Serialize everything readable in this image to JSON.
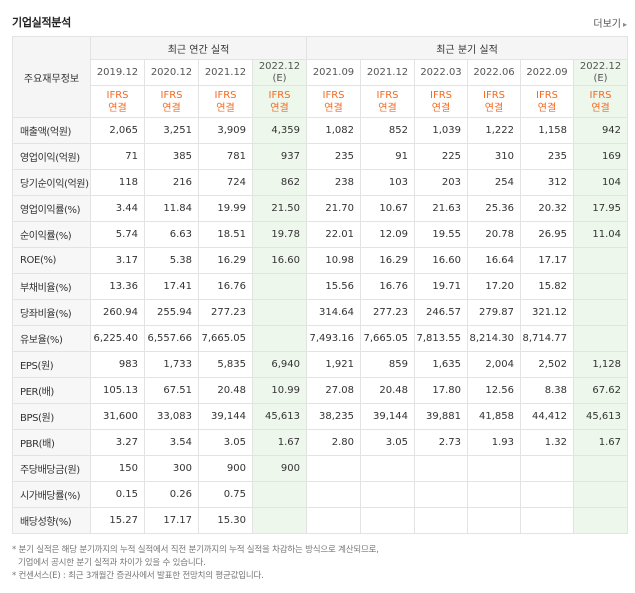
{
  "header": {
    "title": "기업실적분석",
    "more_label": "더보기"
  },
  "table": {
    "row_head": "주요재무정보",
    "groups": [
      "최근 연간 실적",
      "최근 분기 실적"
    ],
    "periods": [
      "2019.12",
      "2020.12",
      "2021.12",
      "2022.12",
      "2021.09",
      "2021.12",
      "2022.03",
      "2022.06",
      "2022.09",
      "2022.12"
    ],
    "estimate_mark": "(E)",
    "std_top": "IFRS",
    "std_bottom": "연결",
    "rows": [
      {
        "label": "매출액(억원)",
        "values": [
          "2,065",
          "3,251",
          "3,909",
          "4,359",
          "1,082",
          "852",
          "1,039",
          "1,222",
          "1,158",
          "942"
        ]
      },
      {
        "label": "영업이익(억원)",
        "values": [
          "71",
          "385",
          "781",
          "937",
          "235",
          "91",
          "225",
          "310",
          "235",
          "169"
        ]
      },
      {
        "label": "당기순이익(억원)",
        "values": [
          "118",
          "216",
          "724",
          "862",
          "238",
          "103",
          "203",
          "254",
          "312",
          "104"
        ]
      },
      {
        "label": "영업이익률(%)",
        "values": [
          "3.44",
          "11.84",
          "19.99",
          "21.50",
          "21.70",
          "10.67",
          "21.63",
          "25.36",
          "20.32",
          "17.95"
        ]
      },
      {
        "label": "순이익률(%)",
        "values": [
          "5.74",
          "6.63",
          "18.51",
          "19.78",
          "22.01",
          "12.09",
          "19.55",
          "20.78",
          "26.95",
          "11.04"
        ]
      },
      {
        "label": "ROE(%)",
        "values": [
          "3.17",
          "5.38",
          "16.29",
          "16.60",
          "10.98",
          "16.29",
          "16.60",
          "16.64",
          "17.17",
          ""
        ]
      },
      {
        "label": "부채비율(%)",
        "values": [
          "13.36",
          "17.41",
          "16.76",
          "",
          "15.56",
          "16.76",
          "19.71",
          "17.20",
          "15.82",
          ""
        ]
      },
      {
        "label": "당좌비율(%)",
        "values": [
          "260.94",
          "255.94",
          "277.23",
          "",
          "314.64",
          "277.23",
          "246.57",
          "279.87",
          "321.12",
          ""
        ]
      },
      {
        "label": "유보율(%)",
        "values": [
          "6,225.40",
          "6,557.66",
          "7,665.05",
          "",
          "7,493.16",
          "7,665.05",
          "7,813.55",
          "8,214.30",
          "8,714.77",
          ""
        ]
      },
      {
        "label": "EPS(원)",
        "values": [
          "983",
          "1,733",
          "5,835",
          "6,940",
          "1,921",
          "859",
          "1,635",
          "2,004",
          "2,502",
          "1,128"
        ]
      },
      {
        "label": "PER(배)",
        "values": [
          "105.13",
          "67.51",
          "20.48",
          "10.99",
          "27.08",
          "20.48",
          "17.80",
          "12.56",
          "8.38",
          "67.62"
        ]
      },
      {
        "label": "BPS(원)",
        "values": [
          "31,600",
          "33,083",
          "39,144",
          "45,613",
          "38,235",
          "39,144",
          "39,881",
          "41,858",
          "44,412",
          "45,613"
        ]
      },
      {
        "label": "PBR(배)",
        "values": [
          "3.27",
          "3.54",
          "3.05",
          "1.67",
          "2.80",
          "3.05",
          "2.73",
          "1.93",
          "1.32",
          "1.67"
        ]
      },
      {
        "label": "주당배당금(원)",
        "values": [
          "150",
          "300",
          "900",
          "900",
          "",
          "",
          "",
          "",
          "",
          ""
        ]
      },
      {
        "label": "시가배당률(%)",
        "values": [
          "0.15",
          "0.26",
          "0.75",
          "",
          "",
          "",
          "",
          "",
          "",
          ""
        ]
      },
      {
        "label": "배당성향(%)",
        "values": [
          "15.27",
          "17.17",
          "15.30",
          "",
          "",
          "",
          "",
          "",
          "",
          ""
        ]
      }
    ]
  },
  "notes": [
    "* 분기 실적은 해당 분기까지의 누적 실적에서 직전 분기까지의 누적 실적을 차감하는 방식으로 계산되므로,",
    "  기업에서 공시한 분기 실적과 차이가 있을 수 있습니다.",
    "* 컨센서스(E) : 최근 3개월간 증권사에서 발표한 전망치의 평균값입니다."
  ]
}
